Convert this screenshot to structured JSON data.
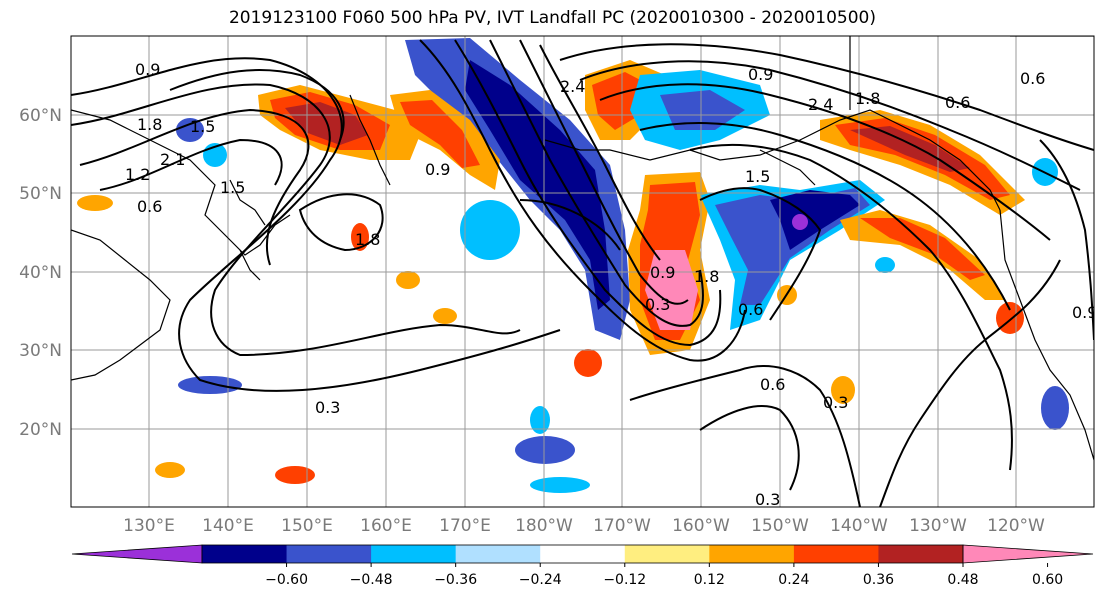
{
  "title": "2019123100 F060 500 hPa PV, IVT Landfall PC (2020010300 - 2020010500)",
  "lat_labels": [
    "60°N",
    "50°N",
    "40°N",
    "30°N",
    "20°N"
  ],
  "lon_labels": [
    "130°E",
    "140°E",
    "150°E",
    "160°E",
    "170°E",
    "180°W",
    "170°W",
    "160°W",
    "150°W",
    "140°W",
    "130°W",
    "120°W"
  ],
  "colorbar": {
    "colors": [
      "#9b30d9",
      "#00008b",
      "#3a53cc",
      "#00bfff",
      "#b0e0ff",
      "#ffffff",
      "#ffee80",
      "#ffa500",
      "#ff4000",
      "#b22222",
      "#ff88b8"
    ],
    "tick_labels": [
      "−0.60",
      "−0.48",
      "−0.36",
      "−0.24",
      "−0.12",
      "0.12",
      "0.24",
      "0.36",
      "0.48",
      "0.60"
    ]
  },
  "contour_labels": [
    "0.9",
    "1.8",
    "1.5",
    "2.1",
    "1.2",
    "1.5",
    "0.6",
    "2.4",
    "0.9",
    "0.6",
    "2.4",
    "1.8",
    "0.6",
    "0.9",
    "1.5",
    "1.8",
    "0.9",
    "0.3",
    "1.8",
    "0.6",
    "0.6",
    "0.3",
    "0.3",
    "0.3",
    "0.9"
  ]
}
